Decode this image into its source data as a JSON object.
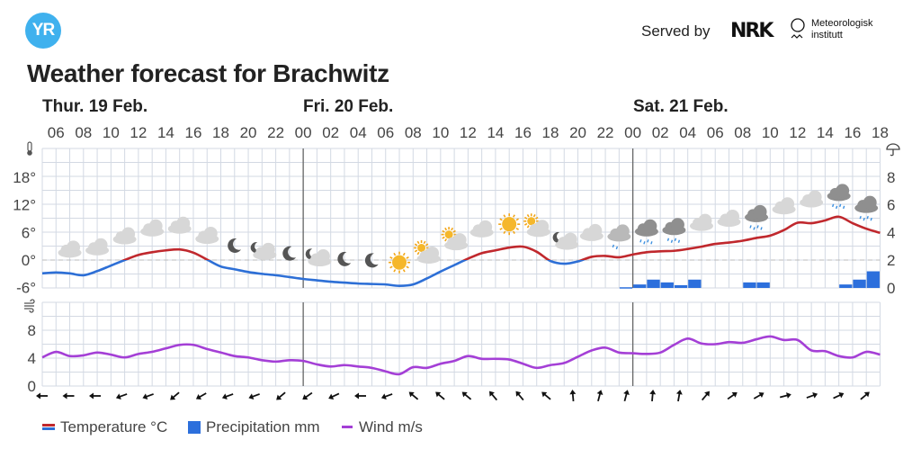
{
  "header": {
    "logo_text": "YR",
    "served_by": "Served by",
    "nrk_logo": "NRK",
    "met_logo_line1": "Meteorologisk",
    "met_logo_line2": "institutt",
    "title": "Weather forecast for Brachwitz"
  },
  "legend": {
    "temperature": "Temperature °C",
    "precipitation": "Precipitation mm",
    "wind": "Wind m/s"
  },
  "colors": {
    "temp_warm": "#c0282d",
    "temp_cold": "#2d6fd6",
    "precip": "#2c6fdc",
    "wind": "#a43fd6",
    "grid": "#d3d9e3"
  },
  "chart_data": {
    "type": "line",
    "start": "Thu 19 Feb 05:00",
    "step_hours": 1,
    "days": [
      {
        "label": "Thur. 19 Feb.",
        "start_hour_index": 0
      },
      {
        "label": "Fri. 20 Feb.",
        "start_hour_index": 19
      },
      {
        "label": "Sat. 21 Feb.",
        "start_hour_index": 43
      }
    ],
    "hour_ticks": [
      "06",
      "08",
      "10",
      "12",
      "14",
      "16",
      "18",
      "20",
      "22",
      "00",
      "02",
      "04",
      "06",
      "08",
      "10",
      "12",
      "14",
      "16",
      "18",
      "20",
      "22",
      "00",
      "02",
      "04",
      "06",
      "08",
      "10",
      "12",
      "14",
      "16",
      "18"
    ],
    "temperature": {
      "axis_labels": [
        "18°",
        "12°",
        "6°",
        "0°",
        "-6°"
      ],
      "ylim": [
        -6,
        24
      ],
      "values": [
        -2.9,
        -2.7,
        -2.9,
        -3.3,
        -2.4,
        -1.2,
        0.0,
        1.1,
        1.7,
        2.1,
        2.3,
        1.6,
        0.1,
        -1.4,
        -2.0,
        -2.6,
        -3.0,
        -3.3,
        -3.7,
        -4.1,
        -4.4,
        -4.7,
        -4.9,
        -5.1,
        -5.2,
        -5.3,
        -5.6,
        -5.3,
        -4.0,
        -2.5,
        -1.1,
        0.3,
        1.5,
        2.1,
        2.7,
        2.9,
        1.8,
        -0.2,
        -0.8,
        -0.3,
        0.7,
        0.9,
        0.6,
        1.2,
        1.7,
        1.9,
        2.0,
        2.4,
        2.9,
        3.5,
        3.8,
        4.2,
        4.8,
        5.3,
        6.5,
        8.1,
        8.0,
        8.6,
        9.4,
        8.0,
        6.8,
        5.9
      ]
    },
    "precipitation": {
      "axis_labels": [
        "8",
        "6",
        "4",
        "2",
        "0"
      ],
      "ylim": [
        0,
        10
      ],
      "bars": [
        {
          "hour": "Fri 23",
          "value": 0.05
        },
        {
          "hour": "Sat 00",
          "value": 0.25
        },
        {
          "hour": "Sat 01",
          "value": 0.6
        },
        {
          "hour": "Sat 02",
          "value": 0.4
        },
        {
          "hour": "Sat 03",
          "value": 0.2
        },
        {
          "hour": "Sat 04",
          "value": 0.6
        },
        {
          "hour": "Sat 08",
          "value": 0.4
        },
        {
          "hour": "Sat 09",
          "value": 0.4
        },
        {
          "hour": "Sat 15",
          "value": 0.25
        },
        {
          "hour": "Sat 16",
          "value": 0.6
        },
        {
          "hour": "Sat 17",
          "value": 1.2
        }
      ],
      "bar_hour_index": [
        42,
        43,
        44,
        45,
        46,
        47,
        51,
        52,
        58,
        59,
        60
      ]
    },
    "wind": {
      "axis_labels": [
        "8",
        "4",
        "0"
      ],
      "ylim": [
        0,
        12
      ],
      "values": [
        4.1,
        4.9,
        4.3,
        4.4,
        4.8,
        4.5,
        4.1,
        4.6,
        4.9,
        5.4,
        5.9,
        5.9,
        5.3,
        4.8,
        4.3,
        4.1,
        3.7,
        3.5,
        3.7,
        3.6,
        3.1,
        2.8,
        3.0,
        2.8,
        2.6,
        2.1,
        1.7,
        2.7,
        2.6,
        3.2,
        3.6,
        4.3,
        3.9,
        3.9,
        3.8,
        3.2,
        2.6,
        3.0,
        3.3,
        4.2,
        5.1,
        5.5,
        4.8,
        4.7,
        4.6,
        4.8,
        5.9,
        6.8,
        6.1,
        6.0,
        6.3,
        6.2,
        6.7,
        7.1,
        6.6,
        6.6,
        5.1,
        5.0,
        4.3,
        4.1,
        4.9,
        4.5
      ],
      "direction_arrows_deg": [
        270,
        270,
        270,
        250,
        250,
        230,
        240,
        250,
        250,
        230,
        235,
        245,
        270,
        250,
        310,
        310,
        310,
        320,
        320,
        310,
        355,
        15,
        15,
        5,
        10,
        40,
        55,
        60,
        75,
        70,
        65,
        50
      ]
    },
    "weather_symbols": [
      "cloudy",
      "cloudy",
      "cloudy",
      "cloudy",
      "cloudy",
      "cloudy",
      "clearsky-night",
      "fair-night",
      "clearsky-night",
      "fair-night",
      "clearsky-night",
      "clearsky-night",
      "clearsky-day",
      "fair-day",
      "fair-day",
      "cloudy",
      "clearsky-day",
      "fair-day",
      "partlycloudy-night",
      "cloudy",
      "lightrain",
      "rain",
      "rain",
      "cloudy",
      "cloudy",
      "rain",
      "cloudy",
      "cloudy",
      "rain",
      "rain"
    ]
  }
}
